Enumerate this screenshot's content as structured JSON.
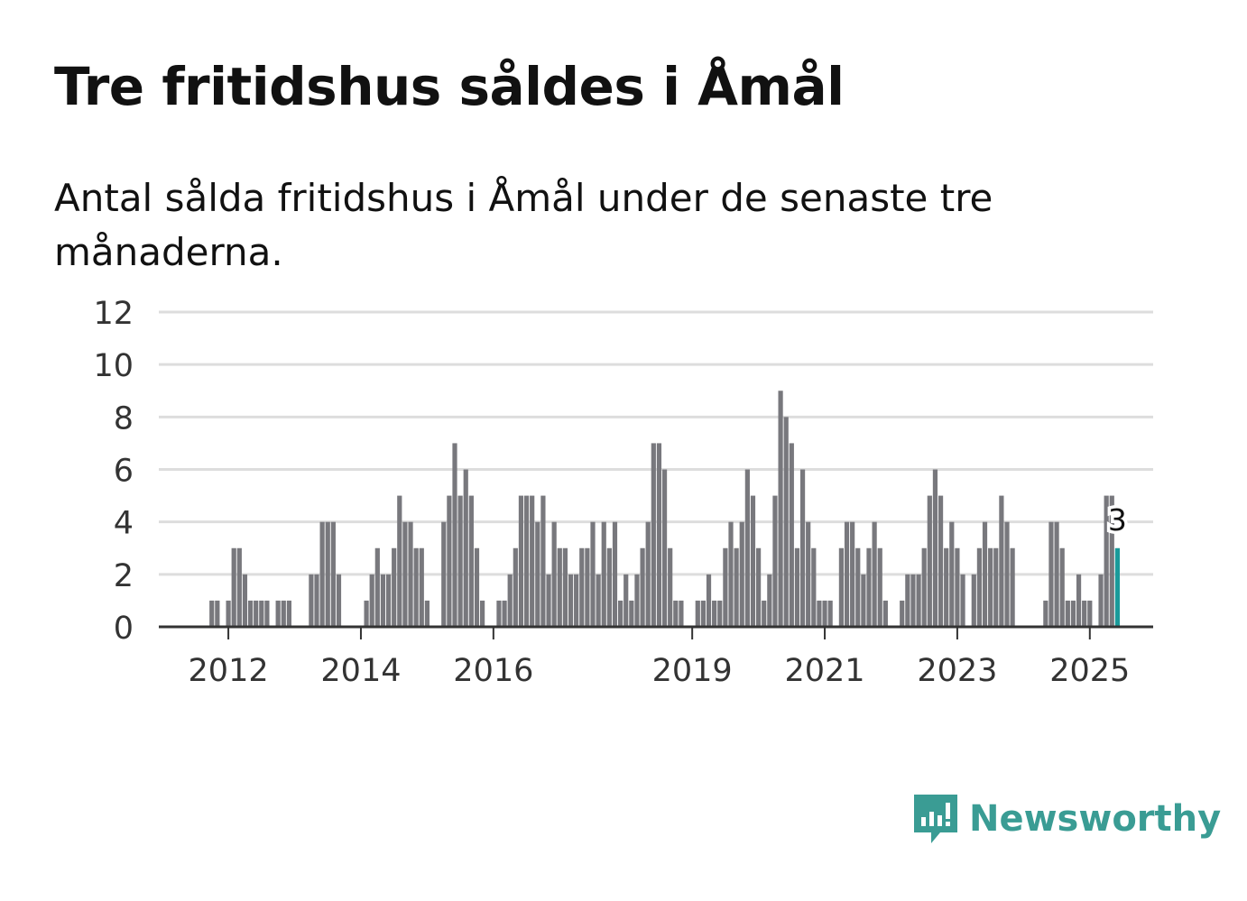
{
  "chart_data": {
    "type": "bar",
    "title": "Tre fritidshus såldes i Åmål",
    "subtitle": "Antal sålda fritidshus i Åmål under de senaste tre månaderna.",
    "xlabel": "",
    "ylabel": "",
    "ylim": [
      0,
      12
    ],
    "yticks": [
      "0",
      "2",
      "4",
      "6",
      "8",
      "10",
      "12"
    ],
    "xticks": [
      "2012",
      "2014",
      "2016",
      "2019",
      "2021",
      "2023",
      "2025"
    ],
    "grid": true,
    "highlight_label": "3",
    "colors": {
      "bar": "#78787d",
      "highlight": "#1a9a9a",
      "grid": "#dddddd",
      "axis": "#333333"
    },
    "categories": [
      "2011-09",
      "2011-10",
      "2011-11",
      "2011-12",
      "2012-01",
      "2012-02",
      "2012-03",
      "2012-04",
      "2012-05",
      "2012-06",
      "2012-07",
      "2012-08",
      "2012-09",
      "2012-10",
      "2012-11",
      "2012-12",
      "2013-01",
      "2013-02",
      "2013-03",
      "2013-04",
      "2013-05",
      "2013-06",
      "2013-07",
      "2013-08",
      "2013-09",
      "2013-10",
      "2013-11",
      "2013-12",
      "2014-01",
      "2014-02",
      "2014-03",
      "2014-04",
      "2014-05",
      "2014-06",
      "2014-07",
      "2014-08",
      "2014-09",
      "2014-10",
      "2014-11",
      "2014-12",
      "2015-01",
      "2015-02",
      "2015-03",
      "2015-04",
      "2015-05",
      "2015-06",
      "2015-07",
      "2015-08",
      "2015-09",
      "2015-10",
      "2015-11",
      "2015-12",
      "2016-01",
      "2016-02",
      "2016-03",
      "2016-04",
      "2016-05",
      "2016-06",
      "2016-07",
      "2016-08",
      "2016-09",
      "2016-10",
      "2016-11",
      "2016-12",
      "2017-01",
      "2017-02",
      "2017-03",
      "2017-04",
      "2017-05",
      "2017-06",
      "2017-07",
      "2017-08",
      "2017-09",
      "2017-10",
      "2017-11",
      "2017-12",
      "2018-01",
      "2018-02",
      "2018-03",
      "2018-04",
      "2018-05",
      "2018-06",
      "2018-07",
      "2018-08",
      "2018-09",
      "2018-10",
      "2018-11",
      "2018-12",
      "2019-01",
      "2019-02",
      "2019-03",
      "2019-04",
      "2019-05",
      "2019-06",
      "2019-07",
      "2019-08",
      "2019-09",
      "2019-10",
      "2019-11",
      "2019-12",
      "2020-01",
      "2020-02",
      "2020-03",
      "2020-04",
      "2020-05",
      "2020-06",
      "2020-07",
      "2020-08",
      "2020-09",
      "2020-10",
      "2020-11",
      "2020-12",
      "2021-01",
      "2021-02",
      "2021-03",
      "2021-04",
      "2021-05",
      "2021-06",
      "2021-07",
      "2021-08",
      "2021-09",
      "2021-10",
      "2021-11",
      "2021-12",
      "2022-01",
      "2022-02",
      "2022-03",
      "2022-04",
      "2022-05",
      "2022-06",
      "2022-07",
      "2022-08",
      "2022-09",
      "2022-10",
      "2022-11",
      "2022-12",
      "2023-01",
      "2023-02",
      "2023-03",
      "2023-04",
      "2023-05",
      "2023-06",
      "2023-07",
      "2023-08",
      "2023-09",
      "2023-10",
      "2023-11",
      "2023-12",
      "2024-01",
      "2024-02",
      "2024-03",
      "2024-04",
      "2024-05",
      "2024-06",
      "2024-07",
      "2024-08",
      "2024-09",
      "2024-10",
      "2024-11",
      "2024-12",
      "2025-01",
      "2025-02",
      "2025-03",
      "2025-04",
      "2025-05",
      "2025-06"
    ],
    "values": [
      0,
      1,
      1,
      0,
      1,
      3,
      3,
      2,
      1,
      1,
      1,
      1,
      0,
      1,
      1,
      1,
      0,
      0,
      0,
      2,
      2,
      4,
      4,
      4,
      2,
      0,
      0,
      0,
      0,
      1,
      2,
      3,
      2,
      2,
      3,
      5,
      4,
      4,
      3,
      3,
      1,
      0,
      0,
      4,
      5,
      7,
      5,
      6,
      5,
      3,
      1,
      0,
      0,
      1,
      1,
      2,
      3,
      5,
      5,
      5,
      4,
      5,
      2,
      4,
      3,
      3,
      2,
      2,
      3,
      3,
      4,
      2,
      4,
      3,
      4,
      1,
      2,
      1,
      2,
      3,
      4,
      7,
      7,
      6,
      3,
      1,
      1,
      0,
      0,
      1,
      1,
      2,
      1,
      1,
      3,
      4,
      3,
      4,
      6,
      5,
      3,
      1,
      2,
      5,
      9,
      8,
      7,
      3,
      6,
      4,
      3,
      1,
      1,
      1,
      0,
      3,
      4,
      4,
      3,
      2,
      3,
      4,
      3,
      1,
      0,
      0,
      1,
      2,
      2,
      2,
      3,
      5,
      6,
      5,
      3,
      4,
      3,
      2,
      0,
      2,
      3,
      4,
      3,
      3,
      5,
      4,
      3,
      0,
      0,
      0,
      0,
      0,
      1,
      4,
      4,
      3,
      1,
      1,
      2,
      1,
      1,
      0,
      2,
      5,
      5,
      3
    ]
  },
  "brand": {
    "name": "Newsworthy",
    "color": "#3a9c94"
  }
}
